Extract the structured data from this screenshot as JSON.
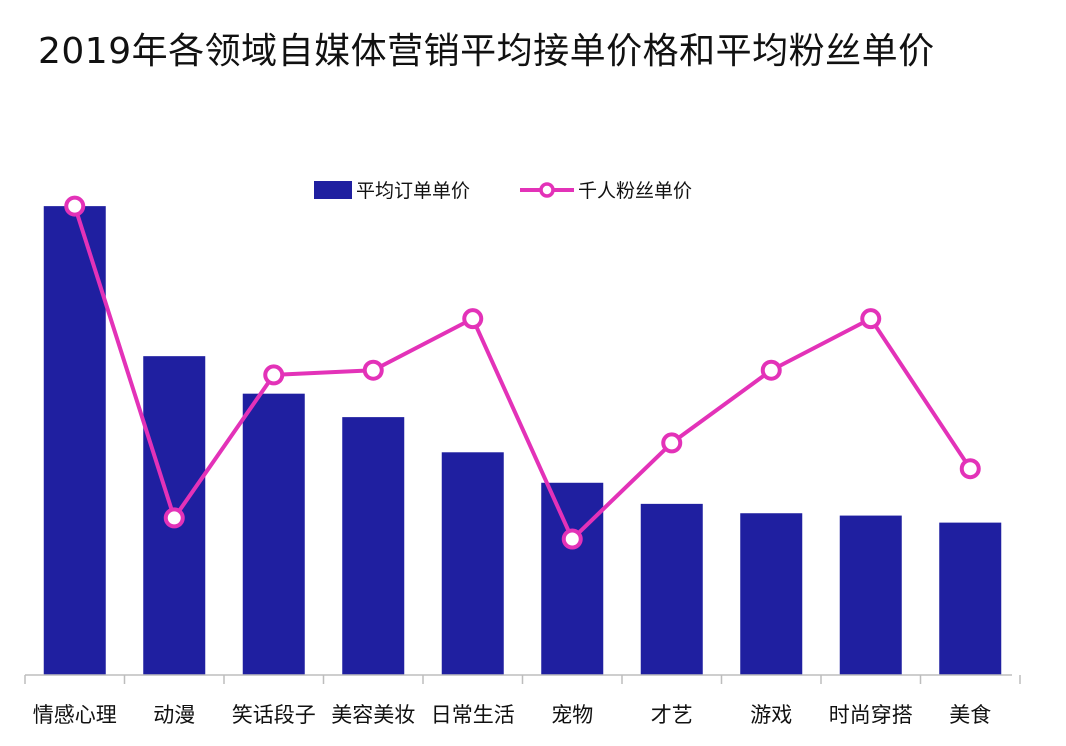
{
  "chart_data": {
    "type": "bar",
    "title": "2019年各领域自媒体营销平均接单价格和平均粉丝单价",
    "categories": [
      "情感心理",
      "动漫",
      "笑话段子",
      "美容美妆",
      "日常生活",
      "宠物",
      "才艺",
      "游戏",
      "时尚穿搭",
      "美食"
    ],
    "series": [
      {
        "name": "平均订单单价",
        "type": "bar",
        "color": "#1f1fa0",
        "values": [
          100,
          68,
          60,
          55,
          47.5,
          41,
          36.5,
          34.5,
          34,
          32.5
        ]
      },
      {
        "name": "千人粉丝单价",
        "type": "line",
        "color": "#e332b8",
        "values": [
          100,
          33.5,
          64,
          65,
          76,
          29,
          49.5,
          65,
          76,
          44
        ]
      }
    ],
    "ylim": [
      0,
      106
    ],
    "grid": false,
    "legend_position": "top-center"
  }
}
